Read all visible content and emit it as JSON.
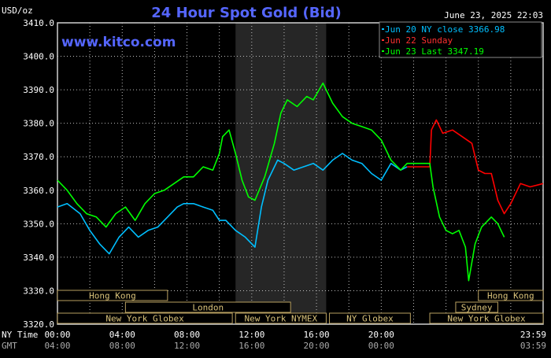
{
  "header": {
    "title": "24 Hour Spot Gold (Bid)",
    "unit_label": "USD/oz",
    "watermark": "www.kitco.com",
    "timestamp": "June 23, 2025 22:03"
  },
  "legend": {
    "placement": "top-right",
    "items": [
      {
        "label": "Jun 20 NY close 3366.98",
        "color": "#00bfff"
      },
      {
        "label": "Jun 22 Sunday",
        "color": "#ff0000"
      },
      {
        "label": "Jun 23 Last 3347.19",
        "color": "#00ff00"
      }
    ]
  },
  "time_axis": {
    "ny_time_label": "NY Time",
    "gmt_label": "GMT",
    "ny_ticks": [
      "00:00",
      "04:00",
      "08:00",
      "12:00",
      "16:00",
      "20:00",
      "23:59"
    ],
    "gmt_ticks": [
      "04:00",
      "08:00",
      "12:00",
      "16:00",
      "20:00",
      "00:00",
      "03:59"
    ]
  },
  "sessions": [
    {
      "label": "Hong Kong",
      "row": 0,
      "start": 0,
      "end": 3.4
    },
    {
      "label": "London",
      "row": 1,
      "start": 2.1,
      "end": 7.2
    },
    {
      "label": "New York Globex",
      "row": 2,
      "start": 0,
      "end": 5.4
    },
    {
      "label": "New York NYMEX",
      "row": 2,
      "start": 5.5,
      "end": 8.3
    },
    {
      "label": "NY Globex",
      "row": 2,
      "start": 8.4,
      "end": 10.9
    },
    {
      "label": "Hong Kong",
      "row": 0,
      "start": 13,
      "end": 15
    },
    {
      "label": "Sydney",
      "row": 1,
      "start": 12.3,
      "end": 13.6
    },
    {
      "label": "New York Globex",
      "row": 2,
      "start": 11.5,
      "end": 15
    }
  ],
  "chart_data": {
    "type": "line",
    "title": "24 Hour Spot Gold (Bid)",
    "ylabel": "USD/oz",
    "xlabel": "NY Time",
    "ylim": [
      3320,
      3410
    ],
    "xlim": [
      0,
      15
    ],
    "yticks": [
      3320,
      3330,
      3340,
      3350,
      3360,
      3370,
      3380,
      3390,
      3400,
      3410
    ],
    "ytick_labels": [
      "3320.0",
      "3330.0",
      "3340.0",
      "3350.0",
      "3360.0",
      "3370.0",
      "3380.0",
      "3390.0",
      "3400.0",
      "3410.0"
    ],
    "grid": true,
    "highlight_x_range": [
      5.5,
      8.3
    ],
    "series": [
      {
        "name": "Jun 20 NY close 3366.98",
        "color": "#00bfff",
        "x": [
          0,
          0.3,
          0.7,
          1.0,
          1.3,
          1.6,
          1.9,
          2.2,
          2.5,
          2.8,
          3.1,
          3.4,
          3.7,
          3.9,
          4.2,
          4.5,
          4.8,
          5.0,
          5.2,
          5.5,
          5.8,
          6.1,
          6.3,
          6.5,
          6.8,
          7.0,
          7.3,
          7.6,
          7.9,
          8.2,
          8.5,
          8.8,
          9.1,
          9.4,
          9.7,
          10.0,
          10.3,
          10.6,
          10.8
        ],
        "y": [
          3355,
          3356,
          3353,
          3348,
          3344,
          3341,
          3346,
          3349,
          3346,
          3348,
          3349,
          3352,
          3355,
          3356,
          3356,
          3355,
          3354,
          3351,
          3351,
          3348,
          3346,
          3343,
          3355,
          3363,
          3369,
          3368,
          3366,
          3367,
          3368,
          3366,
          3369,
          3371,
          3369,
          3368,
          3365,
          3363,
          3368,
          3366,
          3367
        ]
      },
      {
        "name": "Jun 22 Sunday",
        "color": "#ff0000",
        "x": [
          10.8,
          11.5,
          11.55,
          11.7,
          11.9,
          12.2,
          12.5,
          12.8,
          13.0,
          13.2,
          13.4,
          13.6,
          13.8,
          14.0,
          14.3,
          14.6,
          15
        ],
        "y": [
          3367,
          3367,
          3378,
          3381,
          3377,
          3378,
          3376,
          3374,
          3366,
          3365,
          3365,
          3357,
          3353,
          3356,
          3362,
          3361,
          3362
        ]
      },
      {
        "name": "Jun 23 Last 3347.19",
        "color": "#00ff00",
        "x": [
          0,
          0.3,
          0.6,
          0.9,
          1.2,
          1.5,
          1.8,
          2.1,
          2.4,
          2.7,
          3.0,
          3.3,
          3.6,
          3.9,
          4.2,
          4.5,
          4.8,
          5.0,
          5.1,
          5.3,
          5.5,
          5.7,
          5.9,
          6.1,
          6.4,
          6.7,
          6.9,
          7.1,
          7.4,
          7.7,
          7.9,
          8.2,
          8.5,
          8.8,
          9.1,
          9.4,
          9.7,
          10.0,
          10.3,
          10.6,
          10.8,
          11.5,
          11.6,
          11.8,
          12.0,
          12.2,
          12.4,
          12.6,
          12.7,
          12.9,
          13.1,
          13.4,
          13.6,
          13.8
        ],
        "y": [
          3363,
          3360,
          3356,
          3353,
          3352,
          3349,
          3353,
          3355,
          3351,
          3356,
          3359,
          3360,
          3362,
          3364,
          3364,
          3367,
          3366,
          3371,
          3376,
          3378,
          3371,
          3363,
          3358,
          3357,
          3364,
          3374,
          3383,
          3387,
          3385,
          3388,
          3387,
          3392,
          3386,
          3382,
          3380,
          3379,
          3378,
          3375,
          3369,
          3366,
          3368,
          3368,
          3361,
          3352,
          3348,
          3347,
          3348,
          3343,
          3333,
          3344,
          3349,
          3352,
          3350,
          3346
        ]
      }
    ]
  }
}
